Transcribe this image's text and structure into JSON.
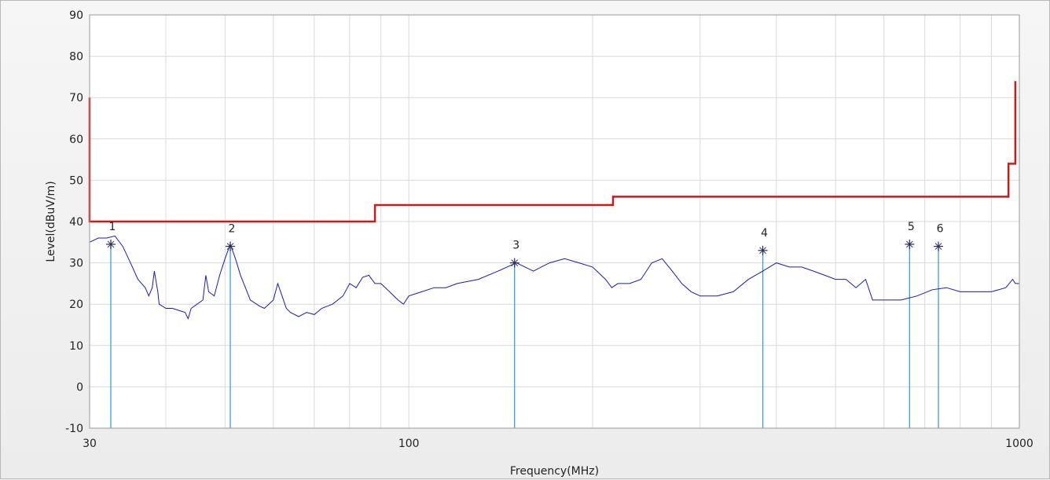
{
  "chart_data": {
    "type": "line",
    "xlabel": "Frequency(MHz)",
    "ylabel": "Level(dBuV/m)",
    "xscale": "log",
    "xlim": [
      30,
      1000
    ],
    "ylim": [
      -10,
      90
    ],
    "x_tick_labels": [
      {
        "value": 30,
        "label": "30"
      },
      {
        "value": 100,
        "label": "100"
      },
      {
        "value": 1000,
        "label": "1000"
      }
    ],
    "y_ticks": [
      -10,
      0,
      10,
      20,
      30,
      40,
      50,
      60,
      70,
      80,
      90
    ],
    "grid": true,
    "colors": {
      "limit": "#cc1a1a",
      "spectrum": "#1a1ab4",
      "marker": "#3aa0d8",
      "grid": "#d9d9d9",
      "plot_bg": "#ffffff"
    },
    "series": [
      {
        "id": "limit",
        "points": [
          [
            30,
            70
          ],
          [
            30,
            40
          ],
          [
            88,
            40
          ],
          [
            88,
            44
          ],
          [
            216,
            44
          ],
          [
            216,
            46
          ],
          [
            960,
            46
          ],
          [
            960,
            54
          ],
          [
            985,
            54
          ],
          [
            985,
            74
          ]
        ]
      },
      {
        "id": "spectrum",
        "points": [
          [
            30,
            35
          ],
          [
            31,
            36
          ],
          [
            32,
            36
          ],
          [
            33,
            36.5
          ],
          [
            34,
            34
          ],
          [
            35,
            30
          ],
          [
            36,
            26
          ],
          [
            37,
            24
          ],
          [
            37.5,
            22
          ],
          [
            38,
            24
          ],
          [
            38.3,
            28
          ],
          [
            38.8,
            23
          ],
          [
            39,
            20
          ],
          [
            40,
            19
          ],
          [
            41,
            19
          ],
          [
            42,
            18.5
          ],
          [
            43,
            18
          ],
          [
            43.5,
            16.5
          ],
          [
            44,
            19
          ],
          [
            45,
            20
          ],
          [
            46,
            21
          ],
          [
            46.5,
            27
          ],
          [
            47,
            23
          ],
          [
            48,
            22
          ],
          [
            49,
            27
          ],
          [
            50,
            31
          ],
          [
            51,
            34.5
          ],
          [
            52,
            31
          ],
          [
            53,
            27
          ],
          [
            54,
            24
          ],
          [
            55,
            21
          ],
          [
            57,
            19.5
          ],
          [
            58,
            19
          ],
          [
            60,
            21
          ],
          [
            61,
            25
          ],
          [
            62,
            22
          ],
          [
            63,
            19
          ],
          [
            64,
            18
          ],
          [
            66,
            17
          ],
          [
            68,
            18
          ],
          [
            70,
            17.5
          ],
          [
            72,
            19
          ],
          [
            75,
            20
          ],
          [
            78,
            22
          ],
          [
            80,
            25
          ],
          [
            82,
            24
          ],
          [
            84,
            26.5
          ],
          [
            86,
            27
          ],
          [
            88,
            25
          ],
          [
            90,
            25
          ],
          [
            93,
            23
          ],
          [
            96,
            21
          ],
          [
            98,
            20
          ],
          [
            100,
            22
          ],
          [
            105,
            23
          ],
          [
            110,
            24
          ],
          [
            115,
            24
          ],
          [
            120,
            25
          ],
          [
            130,
            26
          ],
          [
            140,
            28
          ],
          [
            150,
            30
          ],
          [
            155,
            29
          ],
          [
            160,
            28
          ],
          [
            170,
            30
          ],
          [
            180,
            31
          ],
          [
            190,
            30
          ],
          [
            200,
            29
          ],
          [
            210,
            26
          ],
          [
            215,
            24
          ],
          [
            220,
            25
          ],
          [
            230,
            25
          ],
          [
            240,
            26
          ],
          [
            250,
            30
          ],
          [
            260,
            31
          ],
          [
            270,
            28
          ],
          [
            280,
            25
          ],
          [
            290,
            23
          ],
          [
            300,
            22
          ],
          [
            320,
            22
          ],
          [
            340,
            23
          ],
          [
            360,
            26
          ],
          [
            380,
            28
          ],
          [
            400,
            30
          ],
          [
            420,
            29
          ],
          [
            440,
            29
          ],
          [
            460,
            28
          ],
          [
            480,
            27
          ],
          [
            500,
            26
          ],
          [
            520,
            26
          ],
          [
            540,
            24
          ],
          [
            560,
            26
          ],
          [
            575,
            21
          ],
          [
            600,
            21
          ],
          [
            640,
            21
          ],
          [
            680,
            22
          ],
          [
            720,
            23.5
          ],
          [
            760,
            24
          ],
          [
            800,
            23
          ],
          [
            850,
            23
          ],
          [
            900,
            23
          ],
          [
            950,
            24
          ],
          [
            975,
            26
          ],
          [
            985,
            25
          ],
          [
            1000,
            25
          ]
        ]
      }
    ],
    "markers": [
      {
        "label": "1",
        "x": 32.5,
        "y": 34.5
      },
      {
        "label": "2",
        "x": 51,
        "y": 34
      },
      {
        "label": "3",
        "x": 149,
        "y": 30
      },
      {
        "label": "4",
        "x": 380,
        "y": 33
      },
      {
        "label": "5",
        "x": 661,
        "y": 34.5
      },
      {
        "label": "6",
        "x": 737,
        "y": 34
      }
    ]
  }
}
